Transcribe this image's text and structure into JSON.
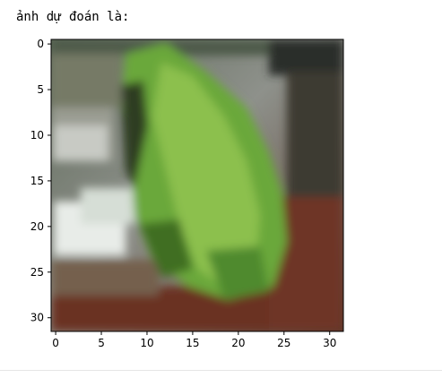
{
  "output": {
    "text": "ảnh dự đoán là:"
  },
  "chart_data": {
    "type": "image",
    "title": "",
    "xlabel": "",
    "ylabel": "",
    "xlim": [
      -0.5,
      31.5
    ],
    "ylim": [
      31.5,
      -0.5
    ],
    "grid": false,
    "x_ticks": [
      {
        "value": 0,
        "label": "0"
      },
      {
        "value": 5,
        "label": "5"
      },
      {
        "value": 10,
        "label": "10"
      },
      {
        "value": 15,
        "label": "15"
      },
      {
        "value": 20,
        "label": "20"
      },
      {
        "value": 25,
        "label": "25"
      },
      {
        "value": 30,
        "label": "30"
      }
    ],
    "y_ticks": [
      {
        "value": 0,
        "label": "0"
      },
      {
        "value": 5,
        "label": "5"
      },
      {
        "value": 10,
        "label": "10"
      },
      {
        "value": 15,
        "label": "15"
      },
      {
        "value": 20,
        "label": "20"
      },
      {
        "value": 25,
        "label": "25"
      },
      {
        "value": 30,
        "label": "30"
      }
    ]
  },
  "colors": {
    "frog_green": "#6aa83a",
    "frog_dark": "#3f6e22",
    "background_gray": "#7f8178",
    "wood_brown": "#6a3222",
    "highlight": "#e8ece8"
  }
}
